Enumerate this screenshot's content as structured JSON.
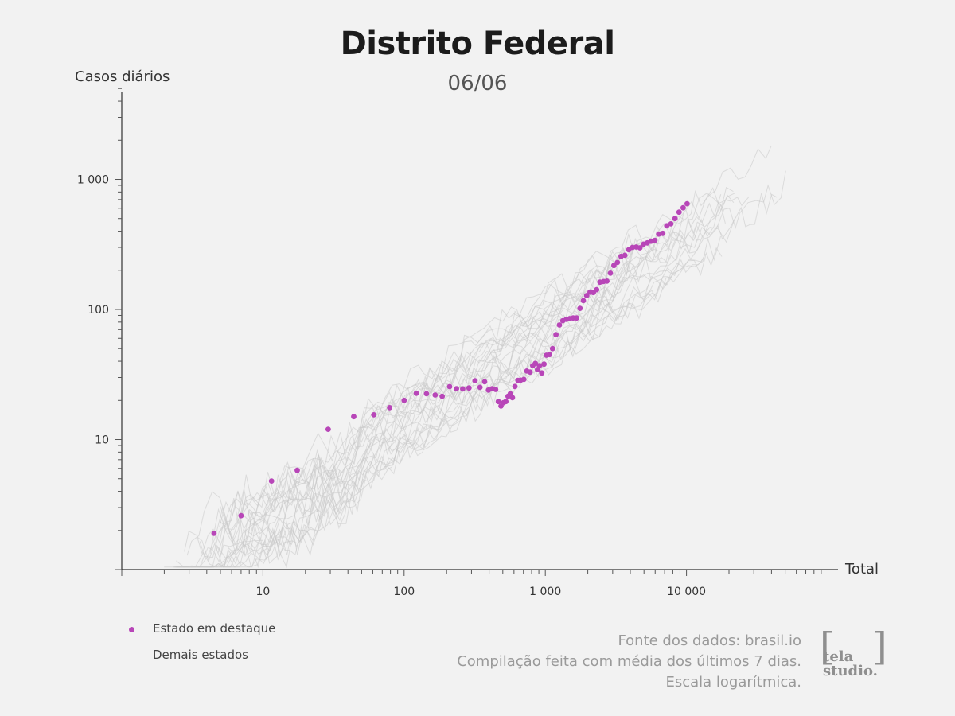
{
  "chart_data": {
    "type": "scatter",
    "title": "Distrito Federal",
    "subtitle": "06/06",
    "xlabel": "Total",
    "ylabel": "Casos diários",
    "x_scale": "log",
    "y_scale": "log",
    "xlim": [
      1,
      100000
    ],
    "ylim": [
      1,
      5000
    ],
    "x_ticks": [
      {
        "value": 10,
        "label": "10"
      },
      {
        "value": 100,
        "label": "100"
      },
      {
        "value": 1000,
        "label": "1 000"
      },
      {
        "value": 10000,
        "label": "10 000"
      }
    ],
    "y_ticks": [
      {
        "value": 10,
        "label": "10"
      },
      {
        "value": 100,
        "label": "100"
      },
      {
        "value": 1000,
        "label": "1 000"
      }
    ],
    "grid": false,
    "highlight_color": "#b846b8",
    "other_color": "#c8c8c8",
    "series": [
      {
        "name": "Estado em destaque",
        "style": "points",
        "points": [
          [
            4.5,
            1.9
          ],
          [
            7,
            2.6
          ],
          [
            11.5,
            4.8
          ],
          [
            17.5,
            5.8
          ],
          [
            29,
            12
          ],
          [
            44,
            15
          ],
          [
            61,
            15.5
          ],
          [
            79,
            17.6
          ],
          [
            100,
            20
          ],
          [
            122,
            22.7
          ],
          [
            144,
            22.5
          ],
          [
            166,
            22
          ],
          [
            186,
            21.5
          ],
          [
            210,
            25.5
          ],
          [
            235,
            24.6
          ],
          [
            260,
            24.5
          ],
          [
            288,
            24.9
          ],
          [
            318,
            28.3
          ],
          [
            345,
            25.2
          ],
          [
            372,
            27.8
          ],
          [
            396,
            24
          ],
          [
            420,
            24.6
          ],
          [
            445,
            24.3
          ],
          [
            465,
            19.6
          ],
          [
            485,
            18.1
          ],
          [
            505,
            19.2
          ],
          [
            525,
            19.6
          ],
          [
            545,
            21.5
          ],
          [
            565,
            22.5
          ],
          [
            585,
            21
          ],
          [
            610,
            25.6
          ],
          [
            640,
            28.5
          ],
          [
            670,
            28.6
          ],
          [
            705,
            29
          ],
          [
            740,
            33.6
          ],
          [
            780,
            33
          ],
          [
            815,
            37
          ],
          [
            850,
            38.5
          ],
          [
            880,
            34.5
          ],
          [
            910,
            37
          ],
          [
            945,
            32.5
          ],
          [
            980,
            38
          ],
          [
            1020,
            44.5
          ],
          [
            1070,
            45
          ],
          [
            1125,
            50
          ],
          [
            1190,
            64
          ],
          [
            1260,
            76
          ],
          [
            1330,
            82
          ],
          [
            1410,
            84
          ],
          [
            1490,
            85
          ],
          [
            1575,
            86
          ],
          [
            1665,
            86
          ],
          [
            1760,
            102
          ],
          [
            1860,
            117
          ],
          [
            1965,
            128
          ],
          [
            2075,
            136
          ],
          [
            2190,
            135
          ],
          [
            2310,
            142
          ],
          [
            2440,
            162
          ],
          [
            2580,
            164
          ],
          [
            2730,
            165
          ],
          [
            2890,
            190
          ],
          [
            3060,
            218
          ],
          [
            3240,
            230
          ],
          [
            3440,
            256
          ],
          [
            3660,
            261
          ],
          [
            3900,
            288
          ],
          [
            4150,
            300
          ],
          [
            4410,
            302
          ],
          [
            4680,
            298
          ],
          [
            4970,
            318
          ],
          [
            5280,
            325
          ],
          [
            5610,
            335
          ],
          [
            5970,
            340
          ],
          [
            6360,
            380
          ],
          [
            6790,
            385
          ],
          [
            7250,
            440
          ],
          [
            7750,
            455
          ],
          [
            8290,
            500
          ],
          [
            8860,
            560
          ],
          [
            9470,
            605
          ],
          [
            10100,
            650
          ]
        ]
      }
    ]
  },
  "legend": {
    "highlight_label": "Estado em destaque",
    "others_label": "Demais estados"
  },
  "notes": {
    "source": "Fonte dos dados: brasil.io",
    "method": "Compilação feita com média dos últimos 7 dias.",
    "scale": "Escala logarítmica."
  },
  "logo": {
    "bracket_left": "[",
    "bracket_right": "]",
    "line1": "tela",
    "line2": "studio."
  }
}
